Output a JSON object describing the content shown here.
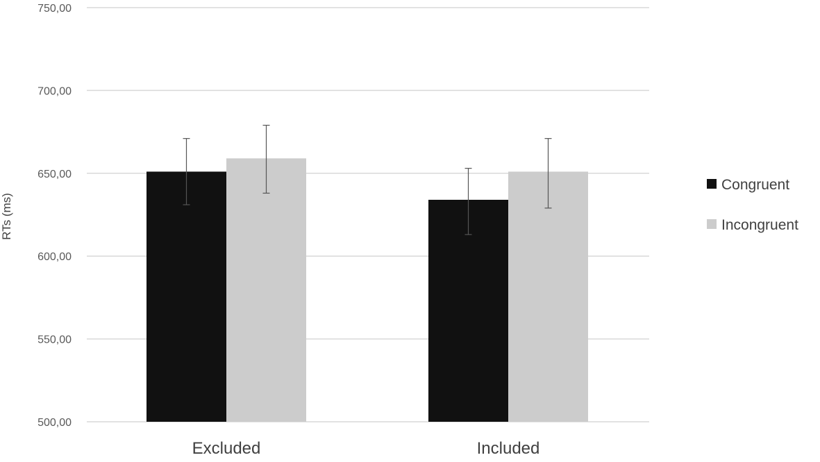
{
  "chart_data": {
    "type": "bar",
    "title": "",
    "xlabel": "",
    "ylabel": "RTs (ms)",
    "ylim": [
      500,
      750
    ],
    "yticks": [
      "500,00",
      "550,00",
      "600,00",
      "650,00",
      "700,00",
      "750,00"
    ],
    "ytick_values": [
      500,
      550,
      600,
      650,
      700,
      750
    ],
    "categories": [
      "Excluded",
      "Included"
    ],
    "series": [
      {
        "name": "Congruent",
        "color": "#111111",
        "values": [
          651,
          634
        ],
        "error_low": [
          631,
          613
        ],
        "error_high": [
          671,
          653
        ]
      },
      {
        "name": "Incongruent",
        "color": "#cccccc",
        "values": [
          659,
          651
        ],
        "error_low": [
          638,
          629
        ],
        "error_high": [
          679,
          671
        ]
      }
    ],
    "grid": true,
    "legend_position": "right"
  }
}
